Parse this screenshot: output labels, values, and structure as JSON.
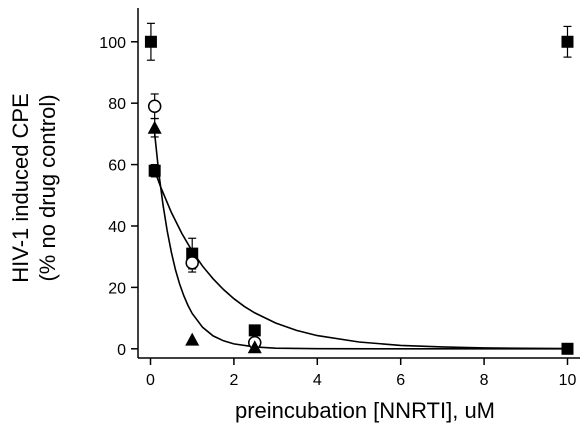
{
  "chart_data": {
    "type": "scatter",
    "title": "",
    "xlabel": "preincubation [NNRTI], uM",
    "ylabel_lines": [
      "HIV-1 induced CPE",
      "(% no drug control)"
    ],
    "xlim": [
      -0.3,
      10.3
    ],
    "ylim": [
      -3,
      111
    ],
    "x_ticks": [
      0,
      2,
      4,
      6,
      8,
      10
    ],
    "y_ticks": [
      0,
      20,
      40,
      60,
      80,
      100
    ],
    "grid": false,
    "legend": "none",
    "series": [
      {
        "marker": "square",
        "color": "#000000",
        "points": [
          {
            "x": 0.01,
            "y": 100,
            "err": 6
          },
          {
            "x": 0.1,
            "y": 58,
            "err": 2
          },
          {
            "x": 1,
            "y": 31,
            "err": 5
          },
          {
            "x": 2.5,
            "y": 6,
            "err": 1
          },
          {
            "x": 10,
            "y": 100,
            "err": 5
          },
          {
            "x": 10,
            "y": 0,
            "err": 1
          }
        ],
        "fit": [
          [
            0.1,
            58
          ],
          [
            0.25,
            52.5
          ],
          [
            0.5,
            44.4
          ],
          [
            0.75,
            37.6
          ],
          [
            1,
            31.8
          ],
          [
            1.25,
            26.9
          ],
          [
            1.5,
            22.8
          ],
          [
            1.75,
            19.3
          ],
          [
            2,
            16.3
          ],
          [
            2.25,
            13.8
          ],
          [
            2.5,
            11.7
          ],
          [
            3,
            8.4
          ],
          [
            3.5,
            6.0
          ],
          [
            4,
            4.3
          ],
          [
            5,
            2.2
          ],
          [
            6,
            1.1
          ],
          [
            7,
            0.6
          ],
          [
            8,
            0.3
          ],
          [
            9,
            0.15
          ],
          [
            10,
            0.08
          ]
        ]
      },
      {
        "marker": "circle-open",
        "color": "#000000",
        "points": [
          {
            "x": 0.1,
            "y": 79,
            "err": 4
          },
          {
            "x": 1,
            "y": 28,
            "err": 3
          },
          {
            "x": 2.5,
            "y": 2,
            "err": 1
          }
        ]
      },
      {
        "marker": "triangle",
        "color": "#000000",
        "points": [
          {
            "x": 0.1,
            "y": 72,
            "err": 3
          },
          {
            "x": 1,
            "y": 3,
            "err": 0
          },
          {
            "x": 2.5,
            "y": 0.5,
            "err": 0
          }
        ],
        "fit": [
          [
            0.1,
            70
          ],
          [
            0.2,
            57.3
          ],
          [
            0.3,
            46.9
          ],
          [
            0.4,
            38.4
          ],
          [
            0.5,
            31.4
          ],
          [
            0.6,
            25.7
          ],
          [
            0.7,
            21.0
          ],
          [
            0.8,
            17.2
          ],
          [
            0.9,
            14.1
          ],
          [
            1,
            11.5
          ],
          [
            1.25,
            7.0
          ],
          [
            1.5,
            4.2
          ],
          [
            1.75,
            2.6
          ],
          [
            2,
            1.6
          ],
          [
            2.5,
            0.6
          ],
          [
            3,
            0.2
          ],
          [
            4,
            0.03
          ],
          [
            6,
            0
          ],
          [
            10,
            0
          ]
        ]
      }
    ]
  }
}
